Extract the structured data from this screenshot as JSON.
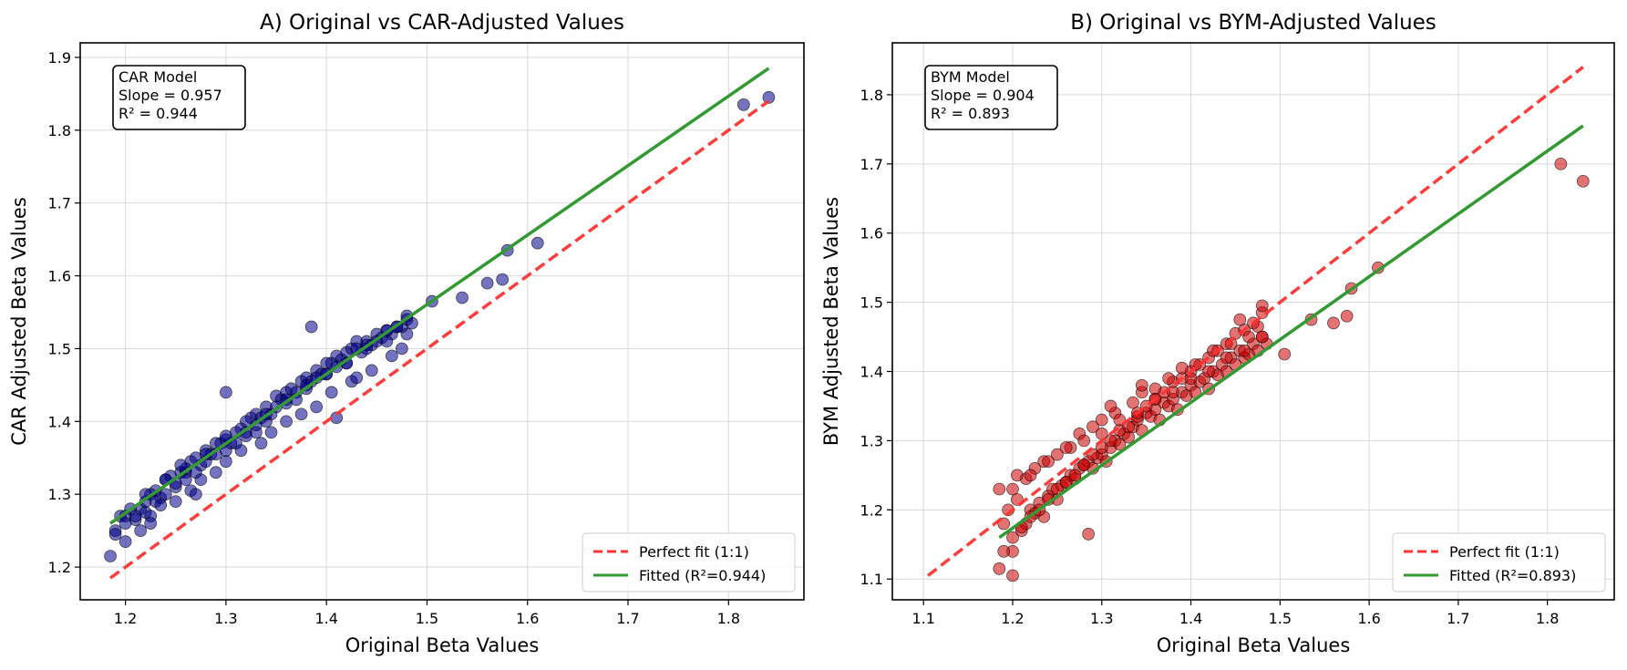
{
  "chart_data": [
    {
      "type": "scatter",
      "title": "A) Original vs CAR-Adjusted Values",
      "xlabel": "Original Beta Values",
      "ylabel": "CAR Adjusted Beta Values",
      "xlim": [
        1.155,
        1.875
      ],
      "ylim": [
        1.155,
        1.92
      ],
      "xticks": [
        1.2,
        1.3,
        1.4,
        1.5,
        1.6,
        1.7,
        1.8
      ],
      "xtick_labels": [
        "1.2",
        "1.3",
        "1.4",
        "1.5",
        "1.6",
        "1.7",
        "1.8"
      ],
      "yticks": [
        1.2,
        1.3,
        1.4,
        1.5,
        1.6,
        1.7,
        1.8,
        1.9
      ],
      "ytick_labels": [
        "1.2",
        "1.3",
        "1.4",
        "1.5",
        "1.6",
        "1.7",
        "1.8",
        "1.9"
      ],
      "grid": true,
      "point_color": "#00008b",
      "annotation": [
        "CAR Model",
        "Slope = 0.957",
        "R² = 0.944"
      ],
      "legend_position": "lower-right",
      "reference_line": {
        "name": "Perfect fit (1:1)",
        "x": [
          1.185,
          1.84
        ],
        "y": [
          1.185,
          1.84
        ],
        "color": "#ff3333",
        "style": "dashed"
      },
      "fitted_line": {
        "name": "Fitted (R²=0.944)",
        "x": [
          1.185,
          1.84
        ],
        "y": [
          1.26,
          1.885
        ],
        "color": "#339933",
        "style": "solid"
      },
      "points": {
        "x": [
          1.185,
          1.19,
          1.195,
          1.2,
          1.205,
          1.21,
          1.215,
          1.22,
          1.225,
          1.23,
          1.235,
          1.24,
          1.245,
          1.25,
          1.255,
          1.26,
          1.265,
          1.27,
          1.275,
          1.28,
          1.285,
          1.29,
          1.295,
          1.3,
          1.305,
          1.31,
          1.315,
          1.32,
          1.325,
          1.33,
          1.335,
          1.34,
          1.345,
          1.35,
          1.355,
          1.36,
          1.365,
          1.37,
          1.375,
          1.38,
          1.385,
          1.39,
          1.395,
          1.4,
          1.405,
          1.41,
          1.415,
          1.42,
          1.425,
          1.43,
          1.435,
          1.44,
          1.445,
          1.45,
          1.455,
          1.46,
          1.465,
          1.47,
          1.475,
          1.48,
          1.485,
          1.19,
          1.2,
          1.21,
          1.22,
          1.23,
          1.24,
          1.25,
          1.26,
          1.27,
          1.28,
          1.29,
          1.3,
          1.31,
          1.32,
          1.33,
          1.34,
          1.35,
          1.36,
          1.37,
          1.38,
          1.39,
          1.4,
          1.41,
          1.42,
          1.43,
          1.44,
          1.45,
          1.46,
          1.47,
          1.48,
          1.2,
          1.215,
          1.225,
          1.235,
          1.25,
          1.265,
          1.275,
          1.29,
          1.3,
          1.315,
          1.335,
          1.345,
          1.36,
          1.375,
          1.39,
          1.405,
          1.425,
          1.445,
          1.465,
          1.475,
          1.22,
          1.24,
          1.26,
          1.28,
          1.3,
          1.32,
          1.34,
          1.36,
          1.38,
          1.4,
          1.42,
          1.44,
          1.46,
          1.48,
          1.505,
          1.535,
          1.56,
          1.575,
          1.58,
          1.61,
          1.815,
          1.84,
          1.385,
          1.43,
          1.3,
          1.41,
          1.255,
          1.33,
          1.225,
          1.27
        ],
        "y": [
          1.215,
          1.25,
          1.27,
          1.27,
          1.28,
          1.265,
          1.28,
          1.29,
          1.3,
          1.305,
          1.295,
          1.32,
          1.325,
          1.31,
          1.33,
          1.33,
          1.345,
          1.35,
          1.34,
          1.36,
          1.355,
          1.37,
          1.37,
          1.375,
          1.37,
          1.385,
          1.39,
          1.385,
          1.405,
          1.41,
          1.405,
          1.42,
          1.41,
          1.435,
          1.43,
          1.44,
          1.445,
          1.44,
          1.455,
          1.46,
          1.455,
          1.47,
          1.465,
          1.48,
          1.48,
          1.49,
          1.485,
          1.495,
          1.5,
          1.51,
          1.495,
          1.51,
          1.505,
          1.52,
          1.515,
          1.525,
          1.52,
          1.53,
          1.53,
          1.54,
          1.535,
          1.245,
          1.26,
          1.27,
          1.275,
          1.29,
          1.3,
          1.315,
          1.32,
          1.33,
          1.345,
          1.355,
          1.36,
          1.37,
          1.38,
          1.395,
          1.4,
          1.42,
          1.425,
          1.43,
          1.445,
          1.46,
          1.465,
          1.475,
          1.48,
          1.5,
          1.505,
          1.51,
          1.525,
          1.53,
          1.545,
          1.235,
          1.25,
          1.27,
          1.285,
          1.29,
          1.305,
          1.32,
          1.33,
          1.345,
          1.36,
          1.37,
          1.385,
          1.4,
          1.41,
          1.42,
          1.44,
          1.455,
          1.47,
          1.49,
          1.5,
          1.3,
          1.32,
          1.335,
          1.355,
          1.38,
          1.4,
          1.41,
          1.43,
          1.45,
          1.465,
          1.48,
          1.5,
          1.51,
          1.52,
          1.565,
          1.57,
          1.59,
          1.595,
          1.635,
          1.645,
          1.835,
          1.845,
          1.53,
          1.46,
          1.44,
          1.405,
          1.34,
          1.385,
          1.26,
          1.3
        ]
      }
    },
    {
      "type": "scatter",
      "title": "B) Original vs BYM-Adjusted Values",
      "xlabel": "Original Beta Values",
      "ylabel": "BYM Adjusted Beta Values",
      "xlim": [
        1.065,
        1.875
      ],
      "ylim": [
        1.07,
        1.875
      ],
      "xticks": [
        1.1,
        1.2,
        1.3,
        1.4,
        1.5,
        1.6,
        1.7,
        1.8
      ],
      "xtick_labels": [
        "1.1",
        "1.2",
        "1.3",
        "1.4",
        "1.5",
        "1.6",
        "1.7",
        "1.8"
      ],
      "yticks": [
        1.1,
        1.2,
        1.3,
        1.4,
        1.5,
        1.6,
        1.7,
        1.8
      ],
      "ytick_labels": [
        "1.1",
        "1.2",
        "1.3",
        "1.4",
        "1.5",
        "1.6",
        "1.7",
        "1.8"
      ],
      "grid": true,
      "point_color": "#cc0000",
      "annotation": [
        "BYM Model",
        "Slope = 0.904",
        "R² = 0.893"
      ],
      "legend_position": "lower-right",
      "reference_line": {
        "name": "Perfect fit (1:1)",
        "x": [
          1.105,
          1.84
        ],
        "y": [
          1.105,
          1.84
        ],
        "color": "#ff3333",
        "style": "dashed"
      },
      "fitted_line": {
        "name": "Fitted (R²=0.893)",
        "x": [
          1.185,
          1.84
        ],
        "y": [
          1.16,
          1.755
        ],
        "color": "#339933",
        "style": "solid"
      },
      "points": {
        "x": [
          1.185,
          1.19,
          1.195,
          1.2,
          1.205,
          1.21,
          1.215,
          1.22,
          1.225,
          1.23,
          1.235,
          1.24,
          1.245,
          1.25,
          1.255,
          1.26,
          1.265,
          1.27,
          1.275,
          1.28,
          1.285,
          1.29,
          1.295,
          1.3,
          1.305,
          1.31,
          1.315,
          1.32,
          1.325,
          1.33,
          1.335,
          1.34,
          1.345,
          1.35,
          1.355,
          1.36,
          1.365,
          1.37,
          1.375,
          1.38,
          1.385,
          1.39,
          1.395,
          1.4,
          1.405,
          1.41,
          1.415,
          1.42,
          1.425,
          1.43,
          1.435,
          1.44,
          1.445,
          1.45,
          1.455,
          1.46,
          1.465,
          1.47,
          1.475,
          1.48,
          1.485,
          1.19,
          1.2,
          1.21,
          1.22,
          1.23,
          1.24,
          1.25,
          1.26,
          1.27,
          1.28,
          1.29,
          1.3,
          1.31,
          1.32,
          1.33,
          1.34,
          1.35,
          1.36,
          1.37,
          1.38,
          1.39,
          1.4,
          1.41,
          1.42,
          1.43,
          1.44,
          1.45,
          1.46,
          1.47,
          1.48,
          1.2,
          1.215,
          1.225,
          1.235,
          1.25,
          1.265,
          1.275,
          1.29,
          1.3,
          1.315,
          1.335,
          1.345,
          1.36,
          1.375,
          1.39,
          1.405,
          1.425,
          1.445,
          1.465,
          1.475,
          1.22,
          1.24,
          1.26,
          1.28,
          1.3,
          1.32,
          1.34,
          1.36,
          1.38,
          1.4,
          1.42,
          1.44,
          1.46,
          1.48,
          1.505,
          1.535,
          1.56,
          1.575,
          1.58,
          1.61,
          1.815,
          1.84,
          1.185,
          1.2,
          1.285,
          1.31,
          1.205,
          1.455,
          1.48,
          1.345
        ],
        "y": [
          1.115,
          1.18,
          1.2,
          1.14,
          1.215,
          1.17,
          1.18,
          1.2,
          1.195,
          1.21,
          1.19,
          1.22,
          1.23,
          1.215,
          1.235,
          1.24,
          1.25,
          1.245,
          1.26,
          1.265,
          1.27,
          1.26,
          1.275,
          1.28,
          1.27,
          1.29,
          1.3,
          1.295,
          1.31,
          1.305,
          1.32,
          1.33,
          1.315,
          1.34,
          1.335,
          1.345,
          1.33,
          1.355,
          1.35,
          1.36,
          1.345,
          1.37,
          1.365,
          1.38,
          1.37,
          1.385,
          1.39,
          1.375,
          1.4,
          1.395,
          1.41,
          1.4,
          1.42,
          1.41,
          1.43,
          1.42,
          1.425,
          1.44,
          1.43,
          1.45,
          1.44,
          1.14,
          1.16,
          1.175,
          1.19,
          1.2,
          1.215,
          1.23,
          1.24,
          1.25,
          1.265,
          1.28,
          1.29,
          1.3,
          1.315,
          1.32,
          1.335,
          1.35,
          1.36,
          1.37,
          1.385,
          1.39,
          1.4,
          1.41,
          1.42,
          1.43,
          1.44,
          1.455,
          1.46,
          1.47,
          1.485,
          1.23,
          1.245,
          1.26,
          1.27,
          1.28,
          1.29,
          1.31,
          1.32,
          1.33,
          1.34,
          1.355,
          1.37,
          1.375,
          1.39,
          1.405,
          1.41,
          1.43,
          1.44,
          1.45,
          1.465,
          1.25,
          1.27,
          1.29,
          1.3,
          1.31,
          1.33,
          1.34,
          1.36,
          1.37,
          1.39,
          1.4,
          1.42,
          1.43,
          1.45,
          1.425,
          1.475,
          1.47,
          1.48,
          1.52,
          1.55,
          1.7,
          1.675,
          1.23,
          1.105,
          1.165,
          1.35,
          1.25,
          1.475,
          1.495,
          1.38
        ]
      }
    }
  ]
}
